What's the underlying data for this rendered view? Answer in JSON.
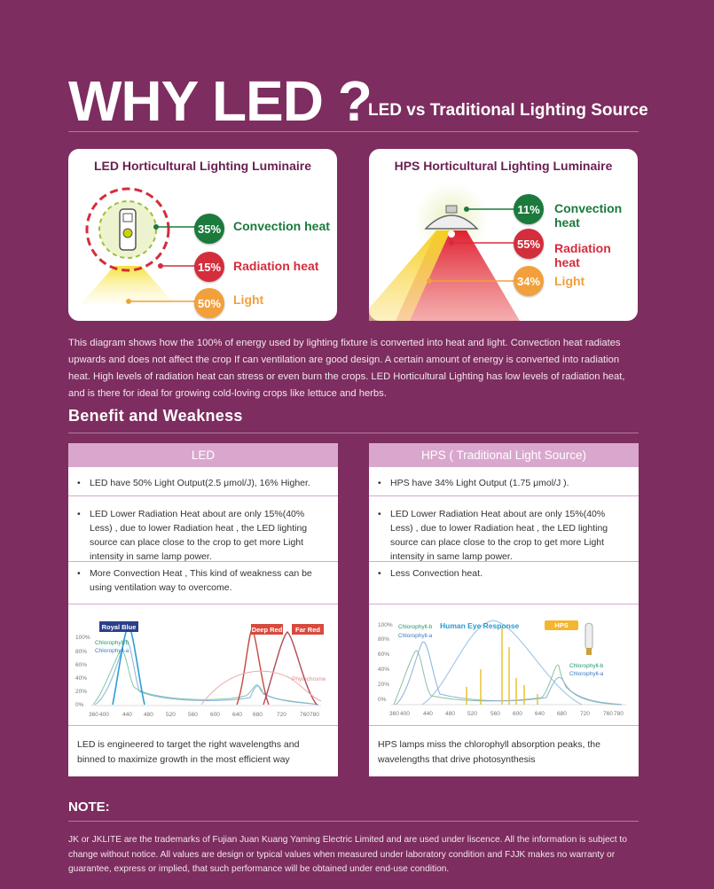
{
  "header": {
    "title": "WHY LED ?",
    "subtitle": "LED vs Traditional Lighting Source"
  },
  "led_card": {
    "title": "LED Horticultural Lighting Luminaire",
    "items": [
      {
        "percent": "35%",
        "label": "Convection heat",
        "color": "#1b7a3c"
      },
      {
        "percent": "15%",
        "label": "Radiation heat",
        "color": "#d42d3c"
      },
      {
        "percent": "50%",
        "label": "Light",
        "color": "#f2a03c"
      }
    ]
  },
  "hps_card": {
    "title": "HPS Horticultural Lighting Luminaire",
    "items": [
      {
        "percent": "11%",
        "label": "Convection heat",
        "color": "#1b7a3c"
      },
      {
        "percent": "55%",
        "label": "Radiation heat",
        "color": "#d42d3c"
      },
      {
        "percent": "34%",
        "label": "Light",
        "color": "#f2a03c"
      }
    ]
  },
  "description": "This diagram shows how the 100% of energy used by lighting fixture is converted into heat and light. Convection heat radiates upwards and does not affect the crop If can ventilation are good design. A certain amount of energy is converted into radiation heat. High levels of radiation heat can stress or even burn the crops. LED Horticultural Lighting has low levels of radiation heat, and is there for ideal for growing cold-loving crops like lettuce and herbs.",
  "benefit": {
    "heading": "Benefit  and  Weakness",
    "led": {
      "header": "LED",
      "rows": [
        "LED have 50% Light Output(2.5 μmol/J), 16% Higher.",
        "LED Lower Radiation Heat about are only 15%(40% Less) , due to lower Radiation heat , the LED lighting source can  place close to the crop to get more Light intensity in same lamp power.",
        "More Convection Heat , This kind of weakness can be using ventilation way to overcome."
      ],
      "chart": {
        "tags": [
          "Royal Blue",
          "Deep Red",
          "Far Red"
        ],
        "legend": [
          "Chlorophyll-b",
          "Chlorophyll-a"
        ],
        "phytochrome": "Phytochrome",
        "y_ticks": [
          "100%",
          "80%",
          "60%",
          "40%",
          "20%",
          "0%"
        ],
        "x_ticks": [
          "360",
          "400",
          "440",
          "480",
          "520",
          "560",
          "600",
          "640",
          "680",
          "720",
          "760",
          "780"
        ]
      },
      "caption": "LED is engineered to target the right wavelengths and binned to maximize growth in the most efficient way"
    },
    "hps": {
      "header": "HPS ( Traditional Light Source)",
      "rows": [
        "HPS have 34% Light Output (1.75 μmol/J ).",
        "LED Lower Radiation Heat about are only 15%(40% Less) , due to lower Radiation heat , the LED lighting source can  place close to the crop to get more Light intensity in same lamp power.",
        "Less Convection heat."
      ],
      "chart": {
        "tags": [
          "HPS"
        ],
        "legend": [
          "Chlorophyll-b",
          "Chlorophyll-a"
        ],
        "eye": "Human Eye Response",
        "legend_right": [
          "Chlorophyll-b",
          "Chlorophyll-a"
        ],
        "y_ticks": [
          "100%",
          "80%",
          "60%",
          "40%",
          "20%",
          "0%"
        ],
        "x_ticks": [
          "360",
          "400",
          "440",
          "480",
          "520",
          "560",
          "600",
          "640",
          "680",
          "720",
          "760",
          "780"
        ]
      },
      "caption": "HPS lamps miss the chlorophyll absorption peaks, the wavelengths that drive photosynthesis"
    }
  },
  "note": {
    "heading": "NOTE:",
    "text": "JK or JKLITE are the trademarks of Fujian Juan Kuang Yaming Electric Limited and are used under liscence. All the information is subject to change without notice. All values are design or typical values when measured under laboratory condition and FJJK makes no warranty or guarantee, express or implied, that such performance will be obtained under end-use condition."
  }
}
